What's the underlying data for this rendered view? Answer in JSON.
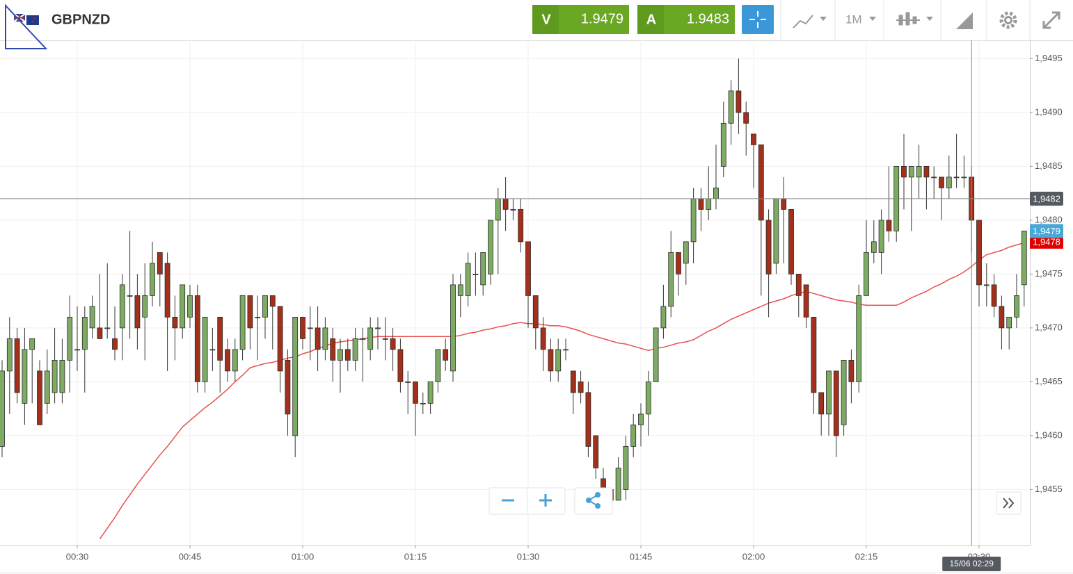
{
  "header": {
    "instrument": "GBPNZD",
    "sell_label": "V",
    "sell_price": "1.9479",
    "buy_label": "A",
    "buy_price": "1.9483",
    "timeframe": "1M"
  },
  "chart_data": {
    "type": "candlestick",
    "categories": [
      "00:20",
      "00:21",
      "00:22",
      "00:23",
      "00:24",
      "00:25",
      "00:26",
      "00:27",
      "00:28",
      "00:29",
      "00:30",
      "00:31",
      "00:32",
      "00:33",
      "00:34",
      "00:35",
      "00:36",
      "00:37",
      "00:38",
      "00:39",
      "00:40",
      "00:41",
      "00:42",
      "00:43",
      "00:44",
      "00:45",
      "00:46",
      "00:47",
      "00:48",
      "00:49",
      "00:50",
      "00:51",
      "00:52",
      "00:53",
      "00:54",
      "00:55",
      "00:56",
      "00:57",
      "00:58",
      "00:59",
      "01:00",
      "01:01",
      "01:02",
      "01:03",
      "01:04",
      "01:05",
      "01:06",
      "01:07",
      "01:08",
      "01:09",
      "01:10",
      "01:11",
      "01:12",
      "01:13",
      "01:14",
      "01:15",
      "01:16",
      "01:17",
      "01:18",
      "01:19",
      "01:20",
      "01:21",
      "01:22",
      "01:23",
      "01:24",
      "01:25",
      "01:26",
      "01:27",
      "01:28",
      "01:29",
      "01:30",
      "01:31",
      "01:32",
      "01:33",
      "01:34",
      "01:35",
      "01:36",
      "01:37",
      "01:38",
      "01:39",
      "01:40",
      "01:41",
      "01:42",
      "01:43",
      "01:44",
      "01:45",
      "01:46",
      "01:47",
      "01:48",
      "01:49",
      "01:50",
      "01:51",
      "01:52",
      "01:53",
      "01:54",
      "01:55",
      "01:56",
      "01:57",
      "01:58",
      "01:59",
      "02:00",
      "02:01",
      "02:02",
      "02:03",
      "02:04",
      "02:05",
      "02:06",
      "02:07",
      "02:08",
      "02:09",
      "02:10",
      "02:11",
      "02:12",
      "02:13",
      "02:14",
      "02:15",
      "02:16",
      "02:17",
      "02:18",
      "02:19",
      "02:20",
      "02:21",
      "02:22",
      "02:23",
      "02:24",
      "02:25",
      "02:26",
      "02:27",
      "02:28",
      "02:29",
      "02:30",
      "02:31",
      "02:32",
      "02:33",
      "02:34",
      "02:35",
      "02:36"
    ],
    "open": [
      1.9459,
      1.9466,
      1.9469,
      1.9463,
      1.9468,
      1.9466,
      1.9463,
      1.9464,
      1.9464,
      1.9467,
      1.9468,
      1.9468,
      1.947,
      1.947,
      1.947,
      1.9469,
      1.947,
      1.9473,
      1.9473,
      1.9471,
      1.9473,
      1.9477,
      1.9476,
      1.9471,
      1.947,
      1.9471,
      1.9473,
      1.9465,
      1.9468,
      1.9471,
      1.9468,
      1.9466,
      1.9468,
      1.9473,
      1.9471,
      1.9471,
      1.9473,
      1.9472,
      1.9467,
      1.946,
      1.9471,
      1.947,
      1.947,
      1.9468,
      1.9469,
      1.9467,
      1.9468,
      1.9467,
      1.9469,
      1.9468,
      1.947,
      1.9469,
      1.9469,
      1.9468,
      1.9465,
      1.9465,
      1.9463,
      1.9463,
      1.9465,
      1.9468,
      1.9466,
      1.9473,
      1.9473,
      1.9475,
      1.9474,
      1.9475,
      1.948,
      1.9482,
      1.9481,
      1.9481,
      1.9478,
      1.9473,
      1.947,
      1.9468,
      1.9466,
      1.9468,
      1.9466,
      1.9465,
      1.9464,
      1.946,
      1.9456,
      1.9455,
      1.9454,
      1.9455,
      1.9459,
      1.9461,
      1.9462,
      1.9465,
      1.947,
      1.9472,
      1.9477,
      1.9476,
      1.9478,
      1.9482,
      1.9481,
      1.9482,
      1.9485,
      1.9489,
      1.9492,
      1.949,
      1.9488,
      1.9487,
      1.948,
      1.9476,
      1.9482,
      1.9481,
      1.9475,
      1.9474,
      1.9471,
      1.9464,
      1.9462,
      1.9466,
      1.9461,
      1.9467,
      1.9465,
      1.9473,
      1.9477,
      1.9477,
      1.948,
      1.9479,
      1.9485,
      1.9484,
      1.9484,
      1.9485,
      1.9484,
      1.9484,
      1.9483,
      1.9484,
      1.9484,
      1.9484,
      1.948,
      1.9474,
      1.9474,
      1.9472,
      1.947,
      1.9471,
      1.9474
    ],
    "high": [
      1.9467,
      1.9471,
      1.947,
      1.947,
      1.9469,
      1.9467,
      1.9468,
      1.947,
      1.9469,
      1.9473,
      1.9472,
      1.9472,
      1.9473,
      1.9475,
      1.9476,
      1.9472,
      1.9475,
      1.9479,
      1.9475,
      1.9476,
      1.9478,
      1.9477,
      1.9477,
      1.9473,
      1.9474,
      1.9474,
      1.9474,
      1.9471,
      1.947,
      1.9471,
      1.9469,
      1.9469,
      1.9473,
      1.9473,
      1.9473,
      1.9473,
      1.9473,
      1.9472,
      1.9468,
      1.9471,
      1.9471,
      1.9472,
      1.9472,
      1.9471,
      1.947,
      1.9469,
      1.9469,
      1.947,
      1.947,
      1.9471,
      1.9471,
      1.9471,
      1.947,
      1.9469,
      1.9466,
      1.9465,
      1.9464,
      1.9465,
      1.9468,
      1.9469,
      1.9475,
      1.9475,
      1.9477,
      1.9477,
      1.9477,
      1.948,
      1.9483,
      1.9484,
      1.9482,
      1.9482,
      1.9478,
      1.9473,
      1.9471,
      1.9469,
      1.9469,
      1.9469,
      1.9466,
      1.9466,
      1.9465,
      1.946,
      1.9457,
      1.9455,
      1.9458,
      1.946,
      1.9462,
      1.9463,
      1.9466,
      1.947,
      1.9474,
      1.9479,
      1.9477,
      1.9478,
      1.9483,
      1.9483,
      1.9485,
      1.9487,
      1.9491,
      1.9493,
      1.9495,
      1.9491,
      1.9488,
      1.9487,
      1.9481,
      1.9482,
      1.9484,
      1.9481,
      1.9475,
      1.9474,
      1.9471,
      1.9464,
      1.9466,
      1.9466,
      1.9467,
      1.9468,
      1.9474,
      1.948,
      1.948,
      1.9481,
      1.9485,
      1.9485,
      1.9488,
      1.9485,
      1.9487,
      1.9485,
      1.9485,
      1.9484,
      1.9486,
      1.9488,
      1.9486,
      1.9485,
      1.948,
      1.9476,
      1.9475,
      1.9473,
      1.9471,
      1.9475,
      1.9479
    ],
    "low": [
      1.9458,
      1.9462,
      1.9463,
      1.9461,
      1.9463,
      1.9461,
      1.9462,
      1.9463,
      1.9463,
      1.9464,
      1.9466,
      1.9464,
      1.9469,
      1.9469,
      1.9469,
      1.9467,
      1.9467,
      1.9469,
      1.9468,
      1.9467,
      1.9472,
      1.9472,
      1.9466,
      1.9467,
      1.9469,
      1.947,
      1.9464,
      1.9464,
      1.9466,
      1.9464,
      1.9465,
      1.9465,
      1.9467,
      1.9468,
      1.9467,
      1.9469,
      1.9468,
      1.9464,
      1.946,
      1.9458,
      1.9468,
      1.9467,
      1.9466,
      1.9467,
      1.9465,
      1.9464,
      1.9466,
      1.9466,
      1.9465,
      1.9467,
      1.9468,
      1.9467,
      1.9466,
      1.9464,
      1.9462,
      1.946,
      1.9462,
      1.9462,
      1.9464,
      1.9466,
      1.9465,
      1.9471,
      1.9472,
      1.9473,
      1.9473,
      1.9474,
      1.9475,
      1.9479,
      1.948,
      1.9477,
      1.947,
      1.9468,
      1.9466,
      1.9465,
      1.9465,
      1.9467,
      1.9462,
      1.9463,
      1.9458,
      1.9456,
      1.9454,
      1.9453,
      1.9454,
      1.9454,
      1.9458,
      1.9459,
      1.946,
      1.9465,
      1.9469,
      1.9471,
      1.9473,
      1.9474,
      1.9476,
      1.9479,
      1.948,
      1.9481,
      1.9484,
      1.9487,
      1.9488,
      1.9486,
      1.9483,
      1.9473,
      1.9471,
      1.9475,
      1.9476,
      1.9474,
      1.9471,
      1.947,
      1.9462,
      1.946,
      1.946,
      1.9458,
      1.946,
      1.9463,
      1.9464,
      1.9473,
      1.9476,
      1.9475,
      1.9478,
      1.9478,
      1.9481,
      1.9479,
      1.9482,
      1.9481,
      1.9482,
      1.948,
      1.9482,
      1.9483,
      1.9483,
      1.9477,
      1.9472,
      1.9472,
      1.9471,
      1.9468,
      1.9468,
      1.947,
      1.9472
    ],
    "close": [
      1.9466,
      1.9469,
      1.9464,
      1.9468,
      1.9469,
      1.9461,
      1.9466,
      1.9467,
      1.9467,
      1.9471,
      1.9468,
      1.9471,
      1.9472,
      1.9469,
      1.947,
      1.9468,
      1.9474,
      1.9473,
      1.947,
      1.9473,
      1.9476,
      1.9475,
      1.9471,
      1.947,
      1.9474,
      1.9473,
      1.9465,
      1.9471,
      1.9468,
      1.9467,
      1.9466,
      1.9468,
      1.9473,
      1.947,
      1.9471,
      1.9473,
      1.9472,
      1.9466,
      1.9462,
      1.9471,
      1.9469,
      1.947,
      1.9468,
      1.947,
      1.9467,
      1.9468,
      1.9467,
      1.9469,
      1.9469,
      1.947,
      1.947,
      1.9469,
      1.9468,
      1.9465,
      1.9465,
      1.9463,
      1.9463,
      1.9465,
      1.9468,
      1.9467,
      1.9474,
      1.9474,
      1.9476,
      1.9475,
      1.9477,
      1.948,
      1.9482,
      1.9481,
      1.9481,
      1.9478,
      1.9473,
      1.947,
      1.9468,
      1.9466,
      1.9468,
      1.9468,
      1.9464,
      1.9464,
      1.9459,
      1.9457,
      1.9455,
      1.9454,
      1.9457,
      1.9459,
      1.9461,
      1.9462,
      1.9465,
      1.947,
      1.9472,
      1.9477,
      1.9475,
      1.9478,
      1.9482,
      1.9481,
      1.9482,
      1.9483,
      1.9489,
      1.9492,
      1.949,
      1.9489,
      1.9487,
      1.948,
      1.9475,
      1.9482,
      1.9481,
      1.9475,
      1.9473,
      1.9471,
      1.9464,
      1.9462,
      1.9466,
      1.946,
      1.9467,
      1.9465,
      1.9473,
      1.9477,
      1.9478,
      1.948,
      1.9479,
      1.9485,
      1.9484,
      1.9485,
      1.9485,
      1.9484,
      1.9484,
      1.9483,
      1.9484,
      1.9484,
      1.9484,
      1.948,
      1.9474,
      1.9474,
      1.9472,
      1.947,
      1.9471,
      1.9473,
      1.9479
    ],
    "up_color": "#7dab63",
    "down_color": "#a3301a",
    "moving_average": {
      "color": "#e8504d",
      "values": [
        null,
        null,
        null,
        null,
        null,
        null,
        null,
        null,
        null,
        null,
        null,
        null,
        null,
        1.94504,
        1.94514,
        1.94524,
        1.94535,
        1.94545,
        1.94555,
        1.94564,
        1.94573,
        1.94582,
        1.9459,
        1.94599,
        1.94608,
        1.94614,
        1.9462,
        1.94626,
        1.94631,
        1.94637,
        1.94643,
        1.9465,
        1.94656,
        1.94663,
        1.94665,
        1.94667,
        1.94668,
        1.9467,
        1.94672,
        1.94673,
        1.94676,
        1.94678,
        1.94681,
        1.94683,
        1.94686,
        1.94687,
        1.94688,
        1.94689,
        1.9469,
        1.94691,
        1.94692,
        1.94692,
        1.94692,
        1.94692,
        1.94692,
        1.94692,
        1.94692,
        1.94692,
        1.94692,
        1.94692,
        1.94692,
        1.94693,
        1.94695,
        1.94696,
        1.94698,
        1.94699,
        1.94701,
        1.94702,
        1.94704,
        1.94705,
        1.94704,
        1.94704,
        1.94703,
        1.94702,
        1.94702,
        1.94701,
        1.94699,
        1.94697,
        1.94694,
        1.94692,
        1.9469,
        1.94688,
        1.94686,
        1.94685,
        1.94683,
        1.94681,
        1.94679,
        1.94681,
        1.94682,
        1.94684,
        1.94686,
        1.94687,
        1.94689,
        1.94693,
        1.94697,
        1.947,
        1.94704,
        1.94708,
        1.94711,
        1.94714,
        1.94717,
        1.9472,
        1.94723,
        1.94725,
        1.94727,
        1.9473,
        1.94732,
        1.94734,
        1.94732,
        1.9473,
        1.94728,
        1.94726,
        1.94725,
        1.94724,
        1.94722,
        1.94721,
        1.94721,
        1.94721,
        1.94721,
        1.94721,
        1.94724,
        1.94728,
        1.94731,
        1.94734,
        1.94738,
        1.94741,
        1.94745,
        1.94748,
        1.94752,
        1.94757,
        1.94763,
        1.94768,
        1.9477,
        1.94772,
        1.94775,
        1.94777,
        1.94779
      ]
    },
    "ylim": [
      1.94498,
      1.94967
    ],
    "yticks": [
      {
        "value": 1.9455,
        "label": "1,9455"
      },
      {
        "value": 1.946,
        "label": "1,9460"
      },
      {
        "value": 1.9465,
        "label": "1,9465"
      },
      {
        "value": 1.947,
        "label": "1,9470"
      },
      {
        "value": 1.9475,
        "label": "1,9475"
      },
      {
        "value": 1.948,
        "label": "1,9480"
      },
      {
        "value": 1.9485,
        "label": "1,9485"
      },
      {
        "value": 1.949,
        "label": "1,9490"
      },
      {
        "value": 1.9495,
        "label": "1,9495"
      }
    ],
    "xticks": [
      "00:30",
      "00:45",
      "01:00",
      "01:15",
      "01:30",
      "01:45",
      "02:00",
      "02:15",
      "02:30"
    ],
    "grid": true,
    "price_tags": [
      {
        "value": 1.9478,
        "label": "1,9478",
        "color": "#e00000"
      },
      {
        "value": 1.9479,
        "label": "1,9479",
        "color": "#4aa8d8"
      }
    ],
    "crosshair": {
      "x": "02:29",
      "x_label": "15/06 02:29",
      "y": 1.9482,
      "y_label": "1,9482"
    }
  }
}
